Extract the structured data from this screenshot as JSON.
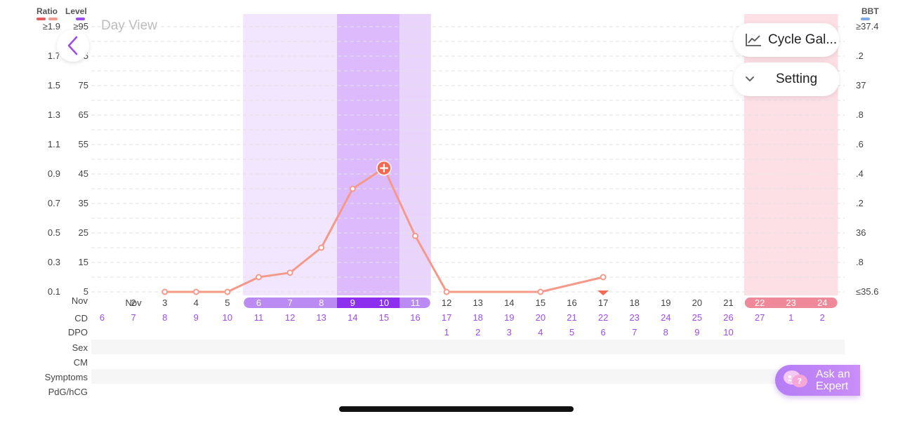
{
  "legend": {
    "ratio_label": "Ratio",
    "level_label": "Level",
    "bbt_label": "BBT",
    "ratio_colors": [
      "#e25c5c",
      "#f59a8e"
    ],
    "level_color": "#9b4de8",
    "bbt_color": "#7fa8e8"
  },
  "header": {
    "day_view_label": "Day View",
    "back_icon": "chevron-left-icon",
    "cycle_gallery_label": "Cycle Gal...",
    "cycle_gallery_icon": "line-chart-icon",
    "setting_label": "Setting",
    "setting_icon": "chevron-down-icon"
  },
  "axes": {
    "ratio_ticks": [
      "≥1.9",
      "1.7",
      "1.5",
      "1.3",
      "1.1",
      "0.9",
      "0.7",
      "0.5",
      "0.3",
      "0.1"
    ],
    "level_ticks": [
      "≥95",
      "85",
      "75",
      "65",
      "55",
      "45",
      "35",
      "25",
      "15",
      "5"
    ],
    "bbt_ticks": [
      "≥37.4",
      ".2",
      "37",
      ".8",
      ".6",
      ".4",
      ".2",
      "36",
      ".8",
      "≤35.6"
    ]
  },
  "rows": {
    "month_label": "Nov",
    "cd_label": "CD",
    "dpo_label": "DPO",
    "sex_label": "Sex",
    "cm_label": "CM",
    "symptoms_label": "Symptoms",
    "pdg_label": "PdG/hCG"
  },
  "chart_data": {
    "type": "line",
    "x_axis_row": "Nov",
    "dates": [
      "Nov",
      "2",
      "3",
      "4",
      "5",
      "6",
      "7",
      "8",
      "9",
      "10",
      "11",
      "12",
      "13",
      "14",
      "15",
      "16",
      "17",
      "18",
      "19",
      "20",
      "21",
      "22",
      "23",
      "24"
    ],
    "cycle_day": [
      "6",
      "7",
      "8",
      "9",
      "10",
      "11",
      "12",
      "13",
      "14",
      "15",
      "16",
      "17",
      "18",
      "19",
      "20",
      "21",
      "22",
      "23",
      "24",
      "25",
      "26",
      "27",
      "1",
      "2"
    ],
    "dpo": [
      "",
      "",
      "",
      "",
      "",
      "",
      "",
      "",
      "",
      "",
      "",
      "1",
      "2",
      "3",
      "4",
      "5",
      "6",
      "7",
      "8",
      "9",
      "10",
      "",
      "",
      ""
    ],
    "series": [
      {
        "axis": "Level",
        "color": "#f5998a",
        "points": [
          {
            "date": "3",
            "level": 5
          },
          {
            "date": "4",
            "level": 5
          },
          {
            "date": "5",
            "level": 5
          },
          {
            "date": "6",
            "level": 10
          },
          {
            "date": "7",
            "level": 11.5
          },
          {
            "date": "8",
            "level": 20
          },
          {
            "date": "9",
            "level": 40
          },
          {
            "date": "10",
            "level": 47
          },
          {
            "date": "11",
            "level": 24
          },
          {
            "date": "12",
            "level": 5
          },
          {
            "date": "15",
            "level": 5
          },
          {
            "date": "17",
            "level": 10
          }
        ]
      }
    ],
    "peak_marker_date": "10",
    "highlight_date": "17",
    "fertile_window": [
      "6",
      "7",
      "8",
      "9",
      "10",
      "11"
    ],
    "ovulation_days": [
      "9",
      "10"
    ],
    "period_days": [
      "22",
      "23",
      "24"
    ],
    "level_range": [
      5,
      95
    ],
    "ratio_range": [
      0.1,
      1.9
    ],
    "bbt_range": [
      35.6,
      37.4
    ],
    "colors": {
      "fertile_light": "#f1e6fd",
      "fertile_mid": "#e9d5fc",
      "ovulation": "#dcbafc",
      "period": "#fde0e6",
      "pill_fertile": "#b98bf3",
      "pill_ovulation_dark": "#8d2fee",
      "pill_period": "#ef899a",
      "cd_color": "#9b4de8",
      "marker": "#f36a53"
    }
  },
  "expert": {
    "line1": "Ask an",
    "line2": "Expert",
    "icon": "chat-bubbles-icon"
  }
}
